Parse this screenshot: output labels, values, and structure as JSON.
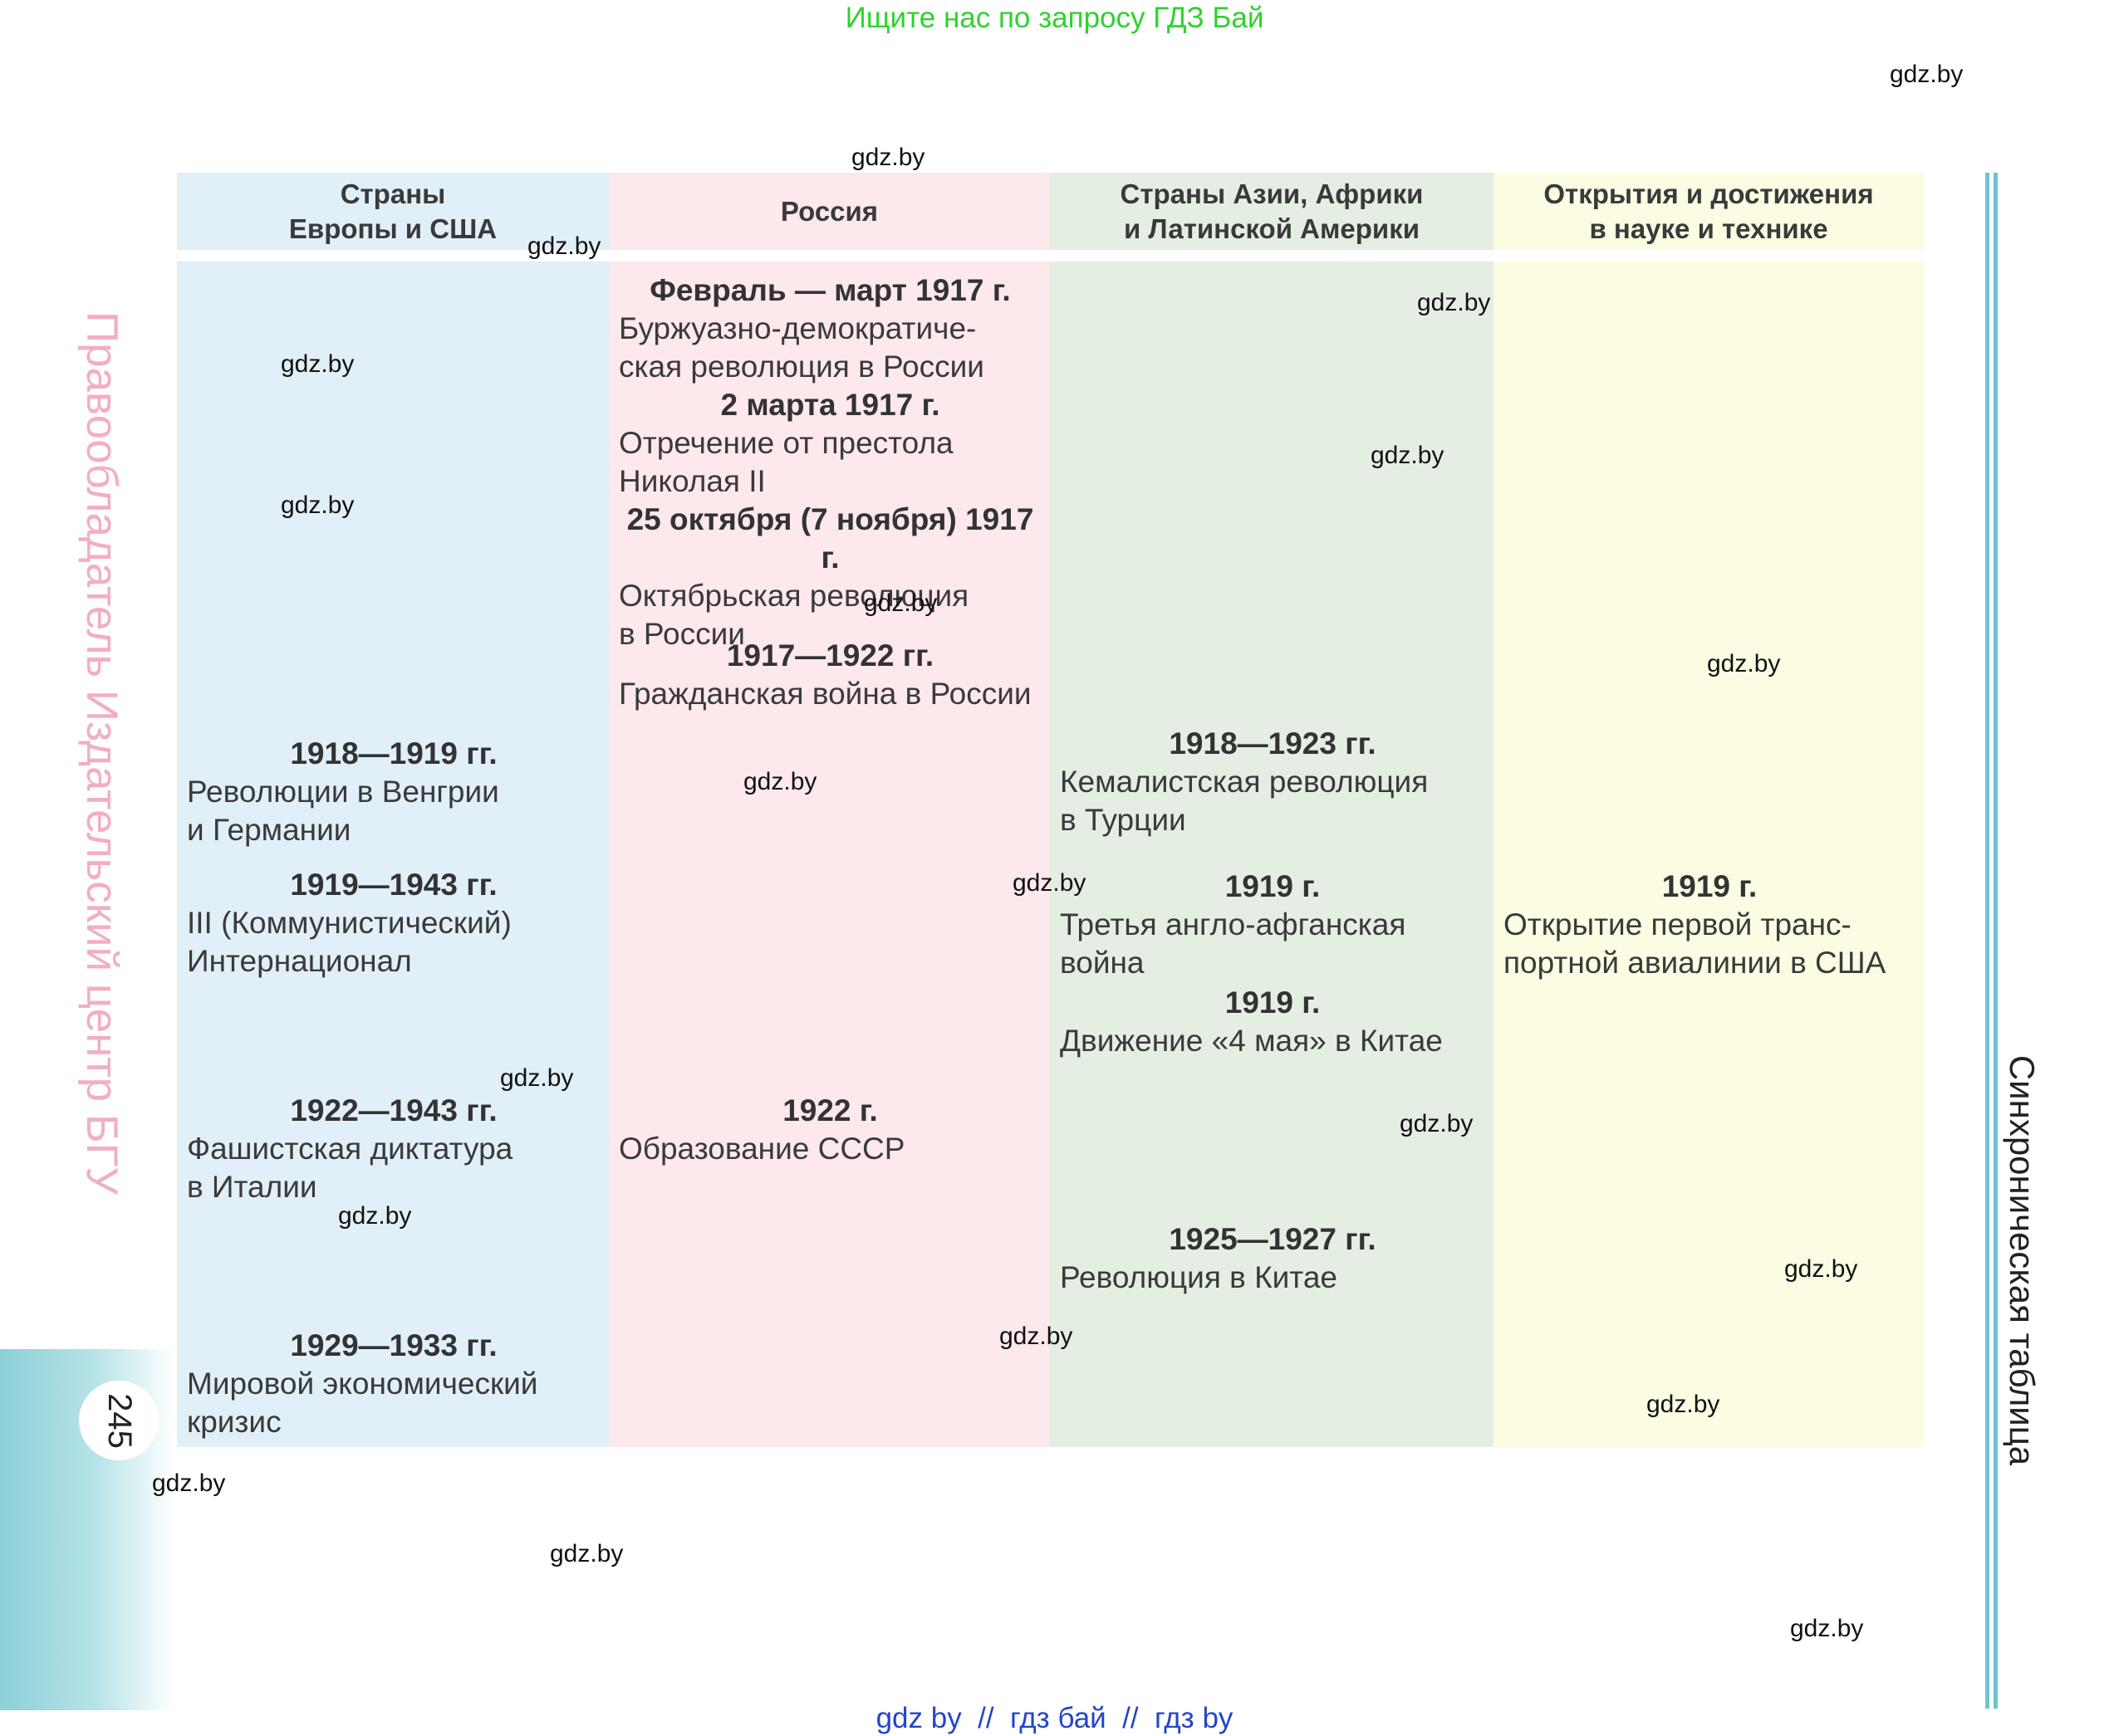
{
  "banner_top": "Ищите нас по запросу ГДЗ Бай",
  "banner_bottom": "gdz by  //  гдз бай  //  гдз by",
  "watermark": "gdz.by",
  "page_number": "245",
  "side_left": "Правообладатель Издательский центр БГУ",
  "side_right": "Синхроническая таблица",
  "colors": {
    "europe": "#e0eff8",
    "russia": "#fde8ec",
    "asia": "#e4eee3",
    "science": "#fcfce3",
    "accent": "#6fc3cf"
  },
  "headers": [
    "Страны\nЕвропы и США",
    "Россия",
    "Страны Азии, Африки\nи Латинской Америки",
    "Открытия и достижения\nв науке и технике"
  ],
  "europe": [
    {
      "date": "1918—1919 гг.",
      "text": "Революции в Венгрии\nи Германии"
    },
    {
      "date": "1919—1943 гг.",
      "text": "III (Коммунистический)\nИнтернационал"
    },
    {
      "date": "1922—1943 гг.",
      "text": "Фашистская диктатура\nв Италии"
    },
    {
      "date": "1929—1933 гг.",
      "text": "Мировой экономический\nкризис"
    }
  ],
  "russia": [
    {
      "date": "Февраль — март 1917 г.",
      "text": "Буржуазно-демократиче-\nская революция в России"
    },
    {
      "date": "2 марта 1917 г.",
      "text": "Отречение от престола\nНиколая II"
    },
    {
      "date": "25 октября (7 ноября) 1917 г.",
      "text": "Октябрьская революция\nв России"
    },
    {
      "date": "1917—1922 гг.",
      "text": "Гражданская война в России"
    },
    {
      "date": "1922 г.",
      "text": "Образование СССР"
    }
  ],
  "asia": [
    {
      "date": "1918—1923 гг.",
      "text": "Кемалистская революция\nв Турции"
    },
    {
      "date": "1919 г.",
      "text": "Третья англо-афганская\nвойна"
    },
    {
      "date": "1919 г.",
      "text": "Движение «4 мая» в Китае"
    },
    {
      "date": "1925—1927 гг.",
      "text": "Революция в Китае"
    }
  ],
  "science": [
    {
      "date": "1919 г.",
      "text": "Открытие первой транс-\nпортной авиалинии в США"
    }
  ]
}
